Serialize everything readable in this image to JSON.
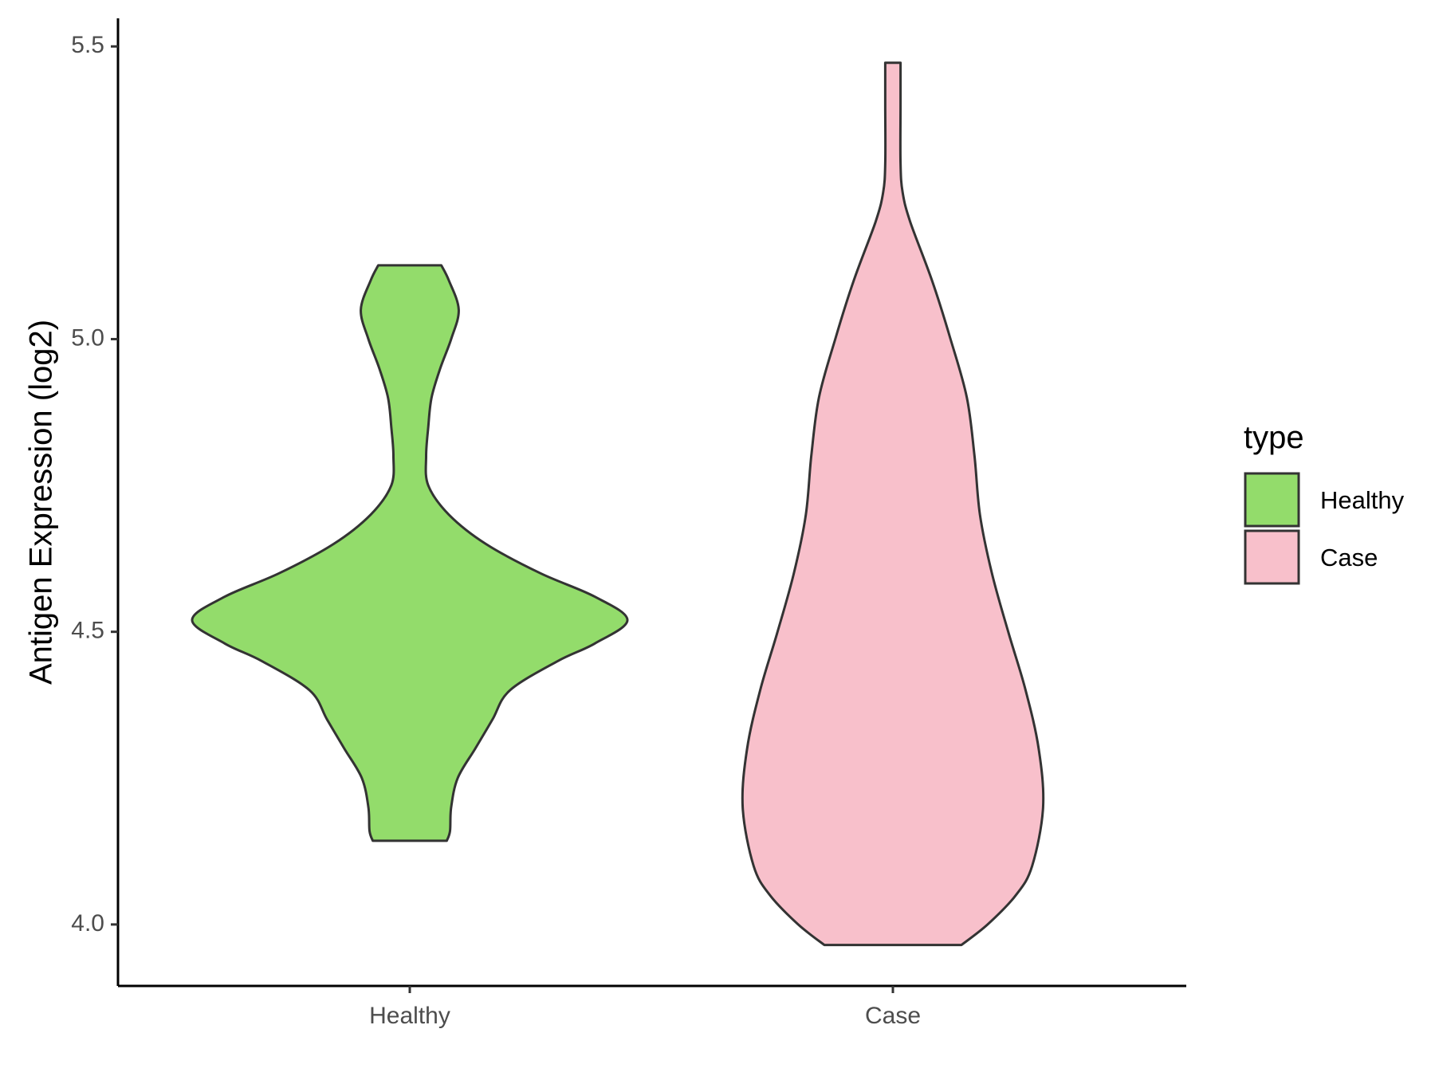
{
  "chart_data": {
    "type": "violin",
    "title": "",
    "xlabel": "",
    "ylabel": "Antigen Expression (log2)",
    "ylim": [
      3.895,
      5.548
    ],
    "yticks": [
      4.0,
      4.5,
      5.0,
      5.5
    ],
    "ytick_labels": [
      "4.0",
      "4.5",
      "5.0",
      "5.5"
    ],
    "categories": [
      "Healthy",
      "Case"
    ],
    "legend": {
      "title": "type",
      "position": "right",
      "entries": [
        "Healthy",
        "Case"
      ]
    },
    "grid": false,
    "colors": {
      "Healthy": "#93dc6b",
      "Case": "#f8c0cb",
      "outline": "#333333"
    },
    "series": [
      {
        "name": "Healthy",
        "y_min": 4.143,
        "y_max": 5.126,
        "density_profile": [
          [
            4.143,
            0.17
          ],
          [
            4.16,
            0.185
          ],
          [
            4.2,
            0.19
          ],
          [
            4.25,
            0.22
          ],
          [
            4.3,
            0.3
          ],
          [
            4.35,
            0.38
          ],
          [
            4.4,
            0.46
          ],
          [
            4.45,
            0.68
          ],
          [
            4.48,
            0.85
          ],
          [
            4.52,
            1.0
          ],
          [
            4.56,
            0.85
          ],
          [
            4.6,
            0.6
          ],
          [
            4.65,
            0.35
          ],
          [
            4.7,
            0.18
          ],
          [
            4.75,
            0.085
          ],
          [
            4.8,
            0.075
          ],
          [
            4.85,
            0.085
          ],
          [
            4.9,
            0.1
          ],
          [
            4.95,
            0.14
          ],
          [
            5.0,
            0.19
          ],
          [
            5.05,
            0.225
          ],
          [
            5.1,
            0.18
          ],
          [
            5.126,
            0.145
          ]
        ]
      },
      {
        "name": "Case",
        "y_min": 3.965,
        "y_max": 5.472,
        "density_profile": [
          [
            3.965,
            0.315
          ],
          [
            4.0,
            0.435
          ],
          [
            4.05,
            0.565
          ],
          [
            4.1,
            0.64
          ],
          [
            4.2,
            0.69
          ],
          [
            4.3,
            0.67
          ],
          [
            4.4,
            0.61
          ],
          [
            4.5,
            0.53
          ],
          [
            4.6,
            0.455
          ],
          [
            4.7,
            0.4
          ],
          [
            4.8,
            0.375
          ],
          [
            4.9,
            0.34
          ],
          [
            5.0,
            0.265
          ],
          [
            5.1,
            0.18
          ],
          [
            5.2,
            0.08
          ],
          [
            5.25,
            0.045
          ],
          [
            5.3,
            0.035
          ],
          [
            5.4,
            0.035
          ],
          [
            5.472,
            0.035
          ]
        ]
      }
    ]
  }
}
